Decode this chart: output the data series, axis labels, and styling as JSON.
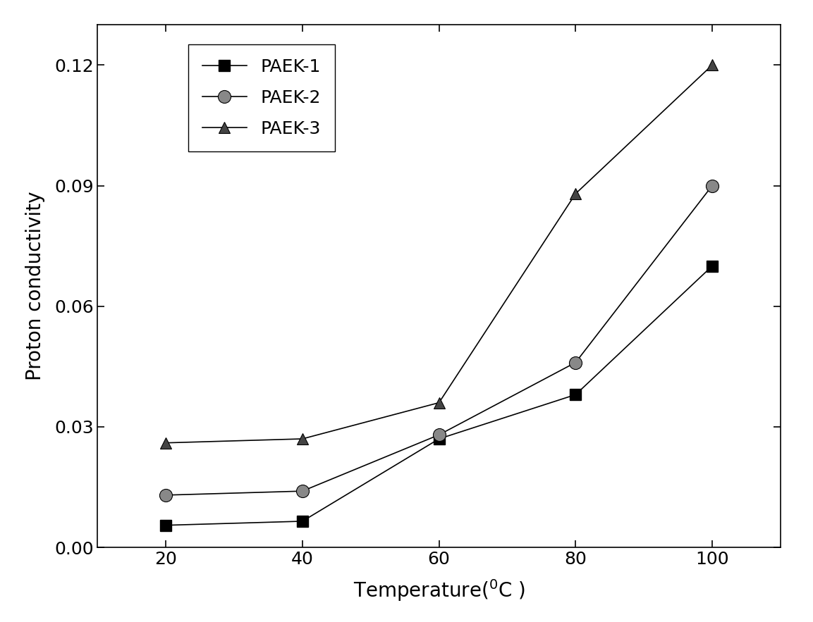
{
  "x": [
    20,
    40,
    60,
    80,
    100
  ],
  "paek1": [
    0.0055,
    0.0065,
    0.027,
    0.038,
    0.07
  ],
  "paek2": [
    0.013,
    0.014,
    0.028,
    0.046,
    0.09
  ],
  "paek3": [
    0.026,
    0.027,
    0.036,
    0.088,
    0.12
  ],
  "labels": [
    "PAEK-1",
    "PAEK-2",
    "PAEK-3"
  ],
  "ylabel": "Proton conductivity",
  "xlim": [
    10,
    110
  ],
  "ylim": [
    0.0,
    0.13
  ],
  "yticks": [
    0.0,
    0.03,
    0.06,
    0.09,
    0.12
  ],
  "xticks": [
    20,
    40,
    60,
    80,
    100
  ],
  "line_color": "#000000",
  "bg_color": "#ffffff",
  "label_fontsize": 20,
  "tick_fontsize": 18,
  "legend_fontsize": 18,
  "linewidth": 1.2,
  "markersize": 11
}
